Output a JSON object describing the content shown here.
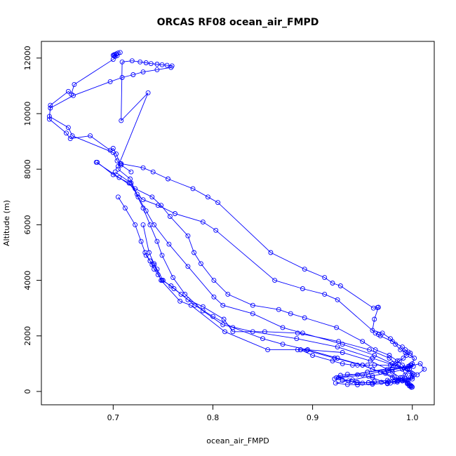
{
  "chart_data": {
    "type": "line",
    "title": "ORCAS RF08 ocean_air_FMPD",
    "xlabel": "ocean_air_FMPD",
    "ylabel": "Altitude (m)",
    "xlim": [
      0.628,
      1.022
    ],
    "ylim": [
      -480,
      12600
    ],
    "x_ticks": [
      0.7,
      0.8,
      0.9,
      1.0
    ],
    "x_tick_labels": [
      "0.7",
      "0.8",
      "0.9",
      "1.0"
    ],
    "y_ticks": [
      0,
      2000,
      4000,
      6000,
      8000,
      10000,
      12000
    ],
    "y_tick_labels": [
      "0",
      "2000",
      "4000",
      "6000",
      "8000",
      "10000",
      "12000"
    ],
    "grid": false,
    "legend": "none",
    "series_color": "#0000ff",
    "marker": "open-circle",
    "series": [
      {
        "x": [
          0.707,
          0.705,
          0.703,
          0.701,
          0.7,
          0.701,
          0.702,
          0.703,
          0.704,
          0.7,
          0.661,
          0.658,
          0.655,
          0.637,
          0.636,
          0.653,
          0.657,
          0.677,
          0.697,
          0.7,
          0.703,
          0.707,
          0.705,
          0.735,
          0.708,
          0.709,
          0.719,
          0.727,
          0.733,
          0.738,
          0.744,
          0.749,
          0.754,
          0.759,
          0.758,
          0.744,
          0.73,
          0.72,
          0.709,
          0.697,
          0.66,
          0.637,
          0.636,
          0.655,
          0.659,
          0.7,
          0.704,
          0.708,
          0.718
        ],
        "y": [
          12200,
          12180,
          12150,
          12120,
          12100,
          12080,
          12060,
          12140,
          12090,
          11950,
          11050,
          10700,
          10800,
          10300,
          9800,
          9300,
          9100,
          9200,
          8680,
          8750,
          8550,
          8200,
          8100,
          10750,
          9750,
          11860,
          11900,
          11860,
          11830,
          11800,
          11780,
          11760,
          11740,
          11720,
          11660,
          11580,
          11500,
          11400,
          11300,
          11150,
          10650,
          10200,
          9900,
          9500,
          9200,
          8600,
          8300,
          8150,
          7900
        ]
      },
      {
        "x": [
          0.708,
          0.73,
          0.74,
          0.755,
          0.78,
          0.795,
          0.805,
          0.858,
          0.892,
          0.912,
          0.92,
          0.928,
          0.961,
          0.965,
          0.966,
          0.962,
          0.96,
          0.97,
          0.978,
          0.983,
          0.988,
          0.993,
          0.998,
          1.002,
          1.0,
          0.997,
          0.993,
          0.99,
          0.986,
          0.982,
          0.978,
          0.975,
          0.96,
          0.956,
          0.945,
          0.935,
          0.928,
          0.924,
          0.955,
          0.98,
          0.996,
          1.008,
          1.012,
          1.005
        ],
        "y": [
          8200,
          8050,
          7900,
          7650,
          7300,
          7000,
          6800,
          5000,
          4400,
          4100,
          3900,
          3800,
          3000,
          3020,
          3030,
          2600,
          2200,
          2100,
          1900,
          1700,
          1500,
          1400,
          1300,
          1200,
          1000,
          800,
          600,
          500,
          400,
          350,
          300,
          280,
          500,
          550,
          600,
          620,
          580,
          500,
          700,
          800,
          900,
          1000,
          800,
          600
        ]
      },
      {
        "x": [
          0.684,
          0.7,
          0.716,
          0.724,
          0.73,
          0.745,
          0.762,
          0.79,
          0.803,
          0.862,
          0.89,
          0.912,
          0.925,
          0.963,
          0.966,
          0.968,
          0.98,
          0.99,
          0.993,
          0.996,
          0.998,
          0.994,
          0.991,
          0.987,
          0.983,
          0.978,
          0.962,
          0.955,
          0.95,
          0.945,
          0.94,
          0.93,
          0.92,
          0.9,
          0.888,
          0.885,
          0.888,
          0.894,
          0.922,
          0.95,
          0.96,
          0.973,
          0.982,
          0.99,
          0.995,
          0.997,
          0.999,
          1.0
        ],
        "y": [
          8250,
          7800,
          7500,
          7100,
          6900,
          6700,
          6400,
          6100,
          5800,
          4000,
          3700,
          3500,
          3300,
          2100,
          2050,
          2000,
          1800,
          1600,
          1500,
          1420,
          1380,
          1300,
          1200,
          1100,
          1000,
          950,
          950,
          950,
          950,
          950,
          950,
          1000,
          1100,
          1300,
          1500,
          1500,
          1500,
          1480,
          1200,
          950,
          800,
          650,
          520,
          420,
          330,
          260,
          200,
          160
        ]
      },
      {
        "x": [
          0.683,
          0.706,
          0.722,
          0.739,
          0.748,
          0.757,
          0.775,
          0.781,
          0.788,
          0.801,
          0.815,
          0.84,
          0.866,
          0.878,
          0.892,
          0.924,
          0.95,
          0.963,
          0.977,
          0.985,
          0.99,
          0.995,
          1.0,
          0.998,
          0.993,
          0.986,
          0.975,
          0.962,
          0.956,
          0.95,
          0.944,
          0.936,
          0.926,
          0.955,
          0.98,
          0.997,
          0.999
        ],
        "y": [
          8250,
          7700,
          7300,
          7000,
          6700,
          6300,
          5600,
          5000,
          4600,
          4000,
          3500,
          3100,
          2950,
          2800,
          2650,
          2300,
          1800,
          1500,
          1300,
          1100,
          950,
          800,
          650,
          500,
          450,
          420,
          400,
          350,
          320,
          300,
          320,
          380,
          500,
          700,
          850,
          900,
          950
        ]
      },
      {
        "x": [
          0.705,
          0.717,
          0.725,
          0.733,
          0.741,
          0.756,
          0.775,
          0.801,
          0.81,
          0.84,
          0.87,
          0.89,
          0.93,
          0.962,
          0.98,
          0.995,
          1.002,
          1.0,
          0.992,
          0.985,
          0.976,
          0.969,
          0.96,
          0.956,
          0.945,
          0.939,
          0.93,
          0.922,
          0.95,
          0.975,
          0.992,
          0.998
        ],
        "y": [
          8000,
          7650,
          7000,
          6500,
          6000,
          5300,
          4500,
          3400,
          3100,
          2800,
          2300,
          2100,
          1700,
          1300,
          1000,
          800,
          600,
          450,
          400,
          380,
          350,
          330,
          300,
          310,
          330,
          360,
          400,
          450,
          600,
          750,
          850,
          950
        ]
      },
      {
        "x": [
          0.702,
          0.718,
          0.73,
          0.737,
          0.744,
          0.749,
          0.76,
          0.772,
          0.79,
          0.81,
          0.84,
          0.884,
          0.925,
          0.96,
          0.985,
          0.998,
          1.0,
          0.995,
          0.99,
          0.985,
          0.975,
          0.96,
          0.945,
          0.935,
          0.923,
          0.94,
          0.96,
          0.98,
          0.995,
          1.001
        ],
        "y": [
          7900,
          7500,
          6600,
          6000,
          5400,
          4900,
          4100,
          3500,
          2900,
          2400,
          2150,
          1900,
          1600,
          1200,
          900,
          700,
          520,
          420,
          380,
          340,
          300,
          260,
          240,
          250,
          300,
          420,
          560,
          700,
          820,
          900
        ]
      },
      {
        "x": [
          0.705,
          0.712,
          0.722,
          0.728,
          0.732,
          0.737,
          0.741,
          0.745,
          0.749,
          0.758,
          0.768,
          0.782,
          0.8,
          0.82,
          0.85,
          0.87,
          0.895,
          0.925,
          0.95,
          0.968,
          0.98,
          0.99,
          0.995,
          0.997,
          0.999
        ],
        "y": [
          7000,
          6600,
          6000,
          5400,
          5000,
          4700,
          4400,
          4200,
          4000,
          3800,
          3500,
          3100,
          2700,
          2300,
          1900,
          1700,
          1500,
          1200,
          950,
          700,
          500,
          380,
          280,
          200,
          150
        ]
      },
      {
        "x": [
          0.73,
          0.736,
          0.741,
          0.748,
          0.767,
          0.778,
          0.812,
          0.855,
          0.895,
          0.93,
          0.958,
          0.975,
          0.988,
          0.995,
          0.998
        ],
        "y": [
          6000,
          5000,
          4600,
          4000,
          3250,
          3100,
          2150,
          1500,
          1500,
          1400,
          1100,
          800,
          500,
          300,
          200
        ]
      },
      {
        "x": [
          0.733,
          0.737,
          0.739,
          0.741,
          0.744,
          0.75,
          0.761,
          0.775,
          0.79,
          0.811,
          0.82,
          0.852,
          0.885,
          0.926,
          0.957,
          0.977,
          0.99,
          0.996,
          0.999
        ],
        "y": [
          4900,
          4700,
          4560,
          4550,
          4400,
          4000,
          3700,
          3300,
          3050,
          2600,
          2150,
          2150,
          2100,
          1800,
          1500,
          1200,
          800,
          400,
          200
        ]
      }
    ]
  }
}
